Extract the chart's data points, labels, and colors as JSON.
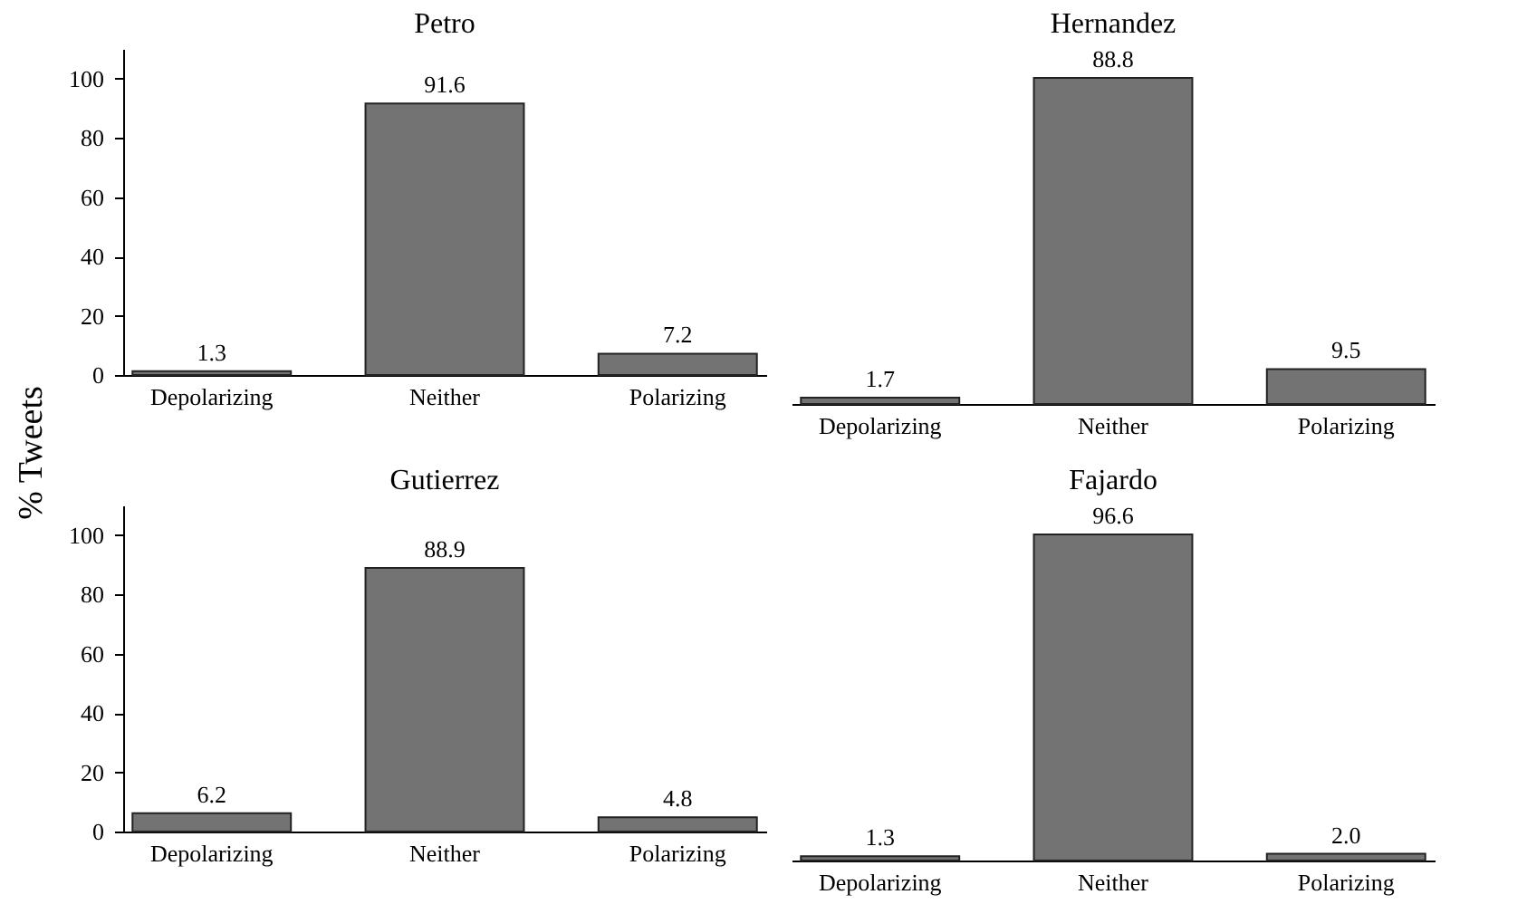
{
  "chart_data": [
    {
      "type": "bar",
      "title": "Petro",
      "ylabel": "% Tweets",
      "categories": [
        "Depolarizing",
        "Neither",
        "Polarizing"
      ],
      "values": [
        1.3,
        91.6,
        7.2
      ],
      "value_labels": [
        "1.3",
        "91.6",
        "7.2"
      ],
      "color": "#737373",
      "ylim": [
        0,
        110
      ],
      "yticks": [
        0,
        20,
        40,
        60,
        80,
        100
      ]
    },
    {
      "type": "bar",
      "title": "Hernandez",
      "categories": [
        "Depolarizing",
        "Neither",
        "Polarizing"
      ],
      "values": [
        1.7,
        88.8,
        9.5
      ],
      "value_labels": [
        "1.7",
        "88.8",
        "9.5"
      ],
      "color": "#737373",
      "tick_labels": "x"
    },
    {
      "type": "bar",
      "title": "Gutierrez",
      "categories": [
        "Depolarizing",
        "Neither",
        "Polarizing"
      ],
      "values": [
        6.2,
        88.9,
        4.8
      ],
      "value_labels": [
        "6.2",
        "88.9",
        "4.8"
      ],
      "color": "#737373",
      "ylim": [
        0,
        110
      ],
      "yticks": [
        0,
        20,
        40,
        60,
        80,
        100
      ]
    },
    {
      "type": "bar",
      "title": "Fajardo",
      "categories": [
        "Depolarizing",
        "Neither",
        "Polarizing"
      ],
      "values": [
        1.3,
        96.6,
        2.0
      ],
      "value_labels": [
        "1.3",
        "96.6",
        "2.0"
      ],
      "color": "#737373",
      "tick_labels": "x"
    }
  ]
}
